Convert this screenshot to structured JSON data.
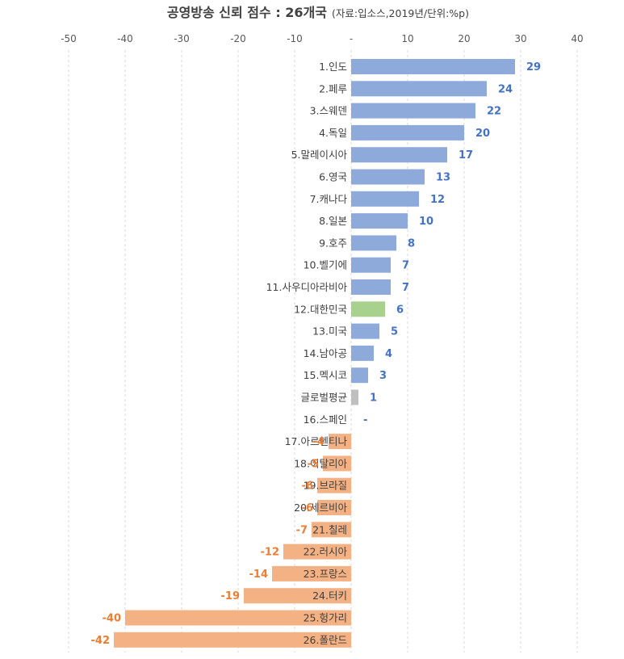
{
  "chart_data": {
    "type": "bar",
    "orientation": "horizontal",
    "title": "공영방송 신뢰 점수 : 26개국",
    "subtitle": "(자료:입소스,2019년/단위:%p)",
    "xlim": [
      -50,
      40
    ],
    "xticks": [
      -50,
      -40,
      -30,
      -20,
      -10,
      0,
      10,
      20,
      30,
      40
    ],
    "xtick_labels": [
      "-50",
      "-40",
      "-30",
      "-20",
      "-10",
      "-",
      "10",
      "20",
      "30",
      "40"
    ],
    "grid": "vertical dashed",
    "categories": [
      "1.인도",
      "2.페루",
      "3.스웨덴",
      "4.독일",
      "5.말레이시아",
      "6.영국",
      "7.캐나다",
      "8.일본",
      "9.호주",
      "10.벨기에",
      "11.사우디아라비아",
      "12.대한민국",
      "13.미국",
      "14.남아공",
      "15.멕시코",
      "글로벌평균",
      "16.스페인",
      "17.아르헨티나",
      "18.이탈리아",
      "19.브라질",
      "20.세르비아",
      "21.칠레",
      "22.러시아",
      "23.프랑스",
      "24.터키",
      "25.헝가리",
      "26.폴란드"
    ],
    "values": [
      29,
      24,
      22,
      20,
      17,
      13,
      12,
      10,
      8,
      7,
      7,
      6,
      5,
      4,
      3,
      1,
      0,
      -4,
      -5,
      -6,
      -6,
      -7,
      -12,
      -14,
      -19,
      -40,
      -42
    ],
    "value_labels": [
      "29",
      "24",
      "22",
      "20",
      "17",
      "13",
      "12",
      "10",
      "8",
      "7",
      "7",
      "6",
      "5",
      "4",
      "3",
      "1",
      "-",
      "-4",
      "-5",
      "-6",
      "-6",
      "-7",
      "-12",
      "-14",
      "-19",
      "-40",
      "-42"
    ],
    "colors": {
      "positive_bar": "#8eaadb",
      "negative_bar": "#f4b183",
      "highlight_bar": "#a9d18e",
      "average_bar": "#bfbfbf",
      "positive_label": "#4472c4",
      "negative_label": "#ed7d31"
    },
    "highlight_category": "12.대한민국",
    "average_category": "글로벌평균"
  }
}
